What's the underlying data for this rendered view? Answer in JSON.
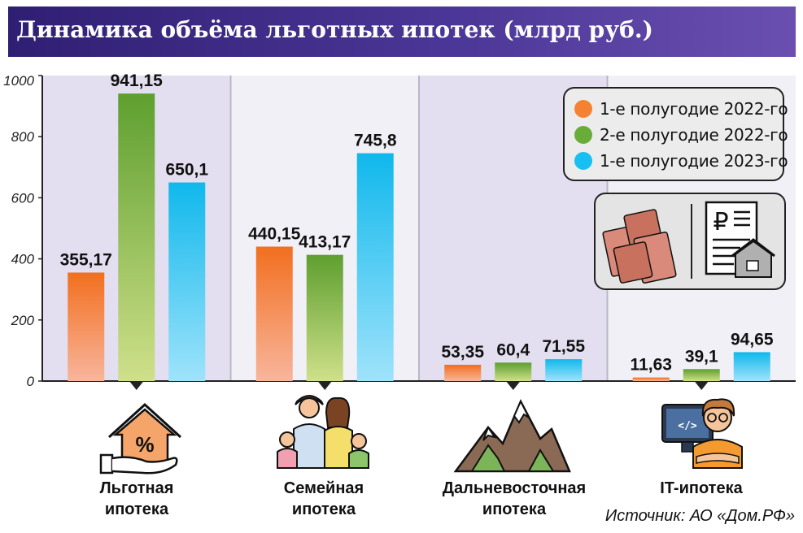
{
  "header": {
    "title": "Динамика объёма льготных ипотек (млрд руб.)"
  },
  "colors": {
    "series_orange": "#f58233",
    "series_green": "#6aac3a",
    "series_blue": "#17c0f0",
    "header_bg": "#3b2a82",
    "group_bg_shaded": "#e3dff0",
    "group_bg_light": "#f2f0f7"
  },
  "chart_data": {
    "type": "bar",
    "title": "Динамика объёма льготных ипотек (млрд руб.)",
    "ylim": [
      0,
      1000
    ],
    "yticks": [
      "0",
      "200",
      "400",
      "600",
      "800",
      "1000"
    ],
    "categories": [
      "Льготная ипотека",
      "Семейная ипотека",
      "Дальневосточная ипотека",
      "IT-ипотека"
    ],
    "series": [
      {
        "name": "1-е полугодие 2022-го",
        "values": [
          355.17,
          440.15,
          53.35,
          11.63
        ],
        "labels": [
          "355,17",
          "440,15",
          "53,35",
          "11,63"
        ]
      },
      {
        "name": "2-е полугодие 2022-го",
        "values": [
          941.15,
          413.17,
          60.4,
          39.1
        ],
        "labels": [
          "941,15",
          "413,17",
          "60,4",
          "39,1"
        ]
      },
      {
        "name": "1-е полугодие 2023-го",
        "values": [
          650.1,
          745.8,
          71.55,
          94.65
        ],
        "labels": [
          "650,1",
          "745,8",
          "71,55",
          "94,65"
        ]
      }
    ],
    "legend_position": "top-right"
  },
  "legend": {
    "items": [
      {
        "label": "1-е полугодие 2022-го",
        "icon": "orange-dot-icon"
      },
      {
        "label": "2-е полугодие 2022-го",
        "icon": "green-dot-icon"
      },
      {
        "label": "1-е полугодие 2023-го",
        "icon": "blue-dot-icon"
      }
    ]
  },
  "categories": {
    "lgotnaya": {
      "line1": "Льготная",
      "line2": "ипотека",
      "icon": "house-percent-icon"
    },
    "semeynaya": {
      "line1": "Семейная",
      "line2": "ипотека",
      "icon": "family-icon"
    },
    "dalnevostochnaya": {
      "line1": "Дальневосточная",
      "line2": "ипотека",
      "icon": "mountains-icon"
    },
    "it": {
      "line1": "IT-ипотека",
      "icon": "programmer-icon"
    }
  },
  "money_box": {
    "currency_symbol": "₽"
  },
  "source": "Источник: АО «Дом.РФ»"
}
